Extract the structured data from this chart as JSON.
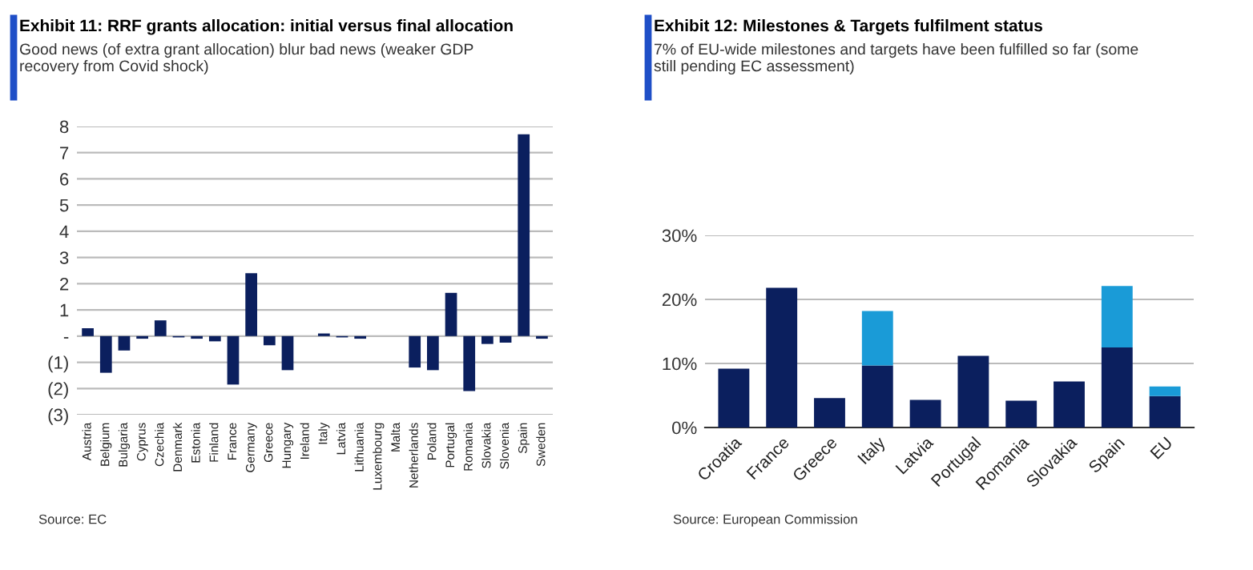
{
  "chart_data": [
    {
      "type": "bar",
      "title": "Exhibit 11: RRF grants allocation: initial versus final allocation",
      "subtitle": "Good news (of extra grant allocation) blur bad news (weaker GDP recovery from Covid shock)",
      "categories": [
        "Austria",
        "Belgium",
        "Bulgaria",
        "Cyprus",
        "Czechia",
        "Denmark",
        "Estonia",
        "Finland",
        "France",
        "Germany",
        "Greece",
        "Hungary",
        "Ireland",
        "Italy",
        "Latvia",
        "Lithuania",
        "Luxembourg",
        "Malta",
        "Netherlands",
        "Poland",
        "Portugal",
        "Romania",
        "Slovakia",
        "Slovenia",
        "Spain",
        "Sweden"
      ],
      "values": [
        0.3,
        -1.4,
        -0.55,
        -0.1,
        0.6,
        -0.05,
        -0.1,
        -0.2,
        -1.85,
        2.4,
        -0.35,
        -1.3,
        0,
        0.1,
        -0.05,
        -0.1,
        0,
        0,
        -1.2,
        -1.3,
        1.65,
        -2.1,
        -0.3,
        -0.25,
        7.7,
        -0.1
      ],
      "color": "#0b1f5e",
      "ylim": [
        -3,
        8
      ],
      "yticks": [
        {
          "value": -3,
          "label": "(3)"
        },
        {
          "value": -2,
          "label": "(2)"
        },
        {
          "value": -1,
          "label": "(1)"
        },
        {
          "value": 0,
          "label": "-"
        },
        1,
        2,
        3,
        4,
        5,
        6,
        7,
        8
      ],
      "grid": "y",
      "annotations": [
        "Source: EC"
      ]
    },
    {
      "type": "bar",
      "stacked": true,
      "title": "Exhibit 12: Milestones & Targets fulfilment status",
      "subtitle": "7% of EU-wide milestones and targets have been fulfilled so far (some still pending EC assessment)",
      "categories": [
        "Croatia",
        "France",
        "Greece",
        "Italy",
        "Latvia",
        "Portugal",
        "Romania",
        "Slovakia",
        "Spain",
        "EU"
      ],
      "series": [
        {
          "color": "#0b1f5e",
          "values": [
            9.2,
            21.8,
            4.6,
            9.7,
            4.3,
            11.2,
            4.2,
            7.2,
            12.5,
            4.9
          ]
        },
        {
          "color": "#1a9bd7",
          "values": [
            null,
            null,
            null,
            8.5,
            null,
            null,
            null,
            null,
            9.6,
            1.5
          ]
        }
      ],
      "ylim": [
        0,
        30
      ],
      "yticks": [
        {
          "value": 0,
          "label": "0%"
        },
        {
          "value": 10,
          "label": "10%"
        },
        {
          "value": 20,
          "label": "20%"
        },
        {
          "value": 30,
          "label": "30%"
        }
      ],
      "grid": "y",
      "annotations": [
        "Source: European Commission"
      ]
    }
  ]
}
